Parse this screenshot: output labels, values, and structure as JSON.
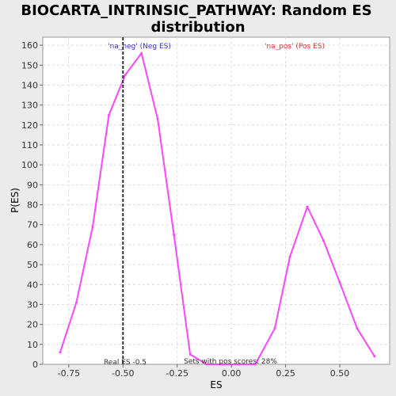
{
  "chart_data": {
    "type": "line",
    "title_line1": "BIOCARTA_INTRINSIC_PATHWAY: Random ES",
    "title_line2": "distribution",
    "xlabel": "ES",
    "ylabel": "P(ES)",
    "xlim": [
      -0.87,
      0.73
    ],
    "ylim": [
      0,
      164
    ],
    "x_ticks": [
      -0.75,
      -0.5,
      -0.25,
      0.0,
      0.25,
      0.5
    ],
    "x_tick_labels": [
      "-0.75",
      "-0.50",
      "-0.25",
      "0.00",
      "0.25",
      "0.50"
    ],
    "y_ticks": [
      0,
      10,
      20,
      30,
      40,
      50,
      60,
      70,
      80,
      90,
      100,
      110,
      120,
      130,
      140,
      150,
      160
    ],
    "y_tick_labels": [
      "0",
      "10",
      "20",
      "30",
      "40",
      "50",
      "60",
      "70",
      "80",
      "90",
      "100",
      "110",
      "120",
      "130",
      "140",
      "150",
      "160"
    ],
    "grid": true,
    "series": [
      {
        "color": "#ff44ff",
        "x": [
          -0.79,
          -0.715,
          -0.64,
          -0.565,
          -0.49,
          -0.415,
          -0.34,
          -0.265,
          -0.19,
          -0.115,
          -0.04,
          0.035,
          0.11,
          0.2,
          0.27,
          0.35,
          0.425,
          0.5,
          0.58,
          0.66
        ],
        "y": [
          6,
          31,
          69,
          125,
          145,
          156,
          123,
          65,
          5,
          0,
          0,
          0,
          0,
          18,
          54,
          79,
          62,
          41,
          18,
          4
        ]
      }
    ],
    "real_es": -0.5,
    "real_es_label": "Real ES -0.5",
    "neg_label": "'na_neg' (Neg ES)",
    "pos_label": "'na_pos' (Pos ES)",
    "pos_scores_label": "Sets with pos scores: 28%",
    "colors": {
      "neg_label": "#3333cc",
      "pos_label": "#e03030",
      "line": "#ff44ff",
      "real_es_line": "#333333",
      "plot_bg": "#ffffff",
      "page_bg": "#ebebeb"
    }
  }
}
